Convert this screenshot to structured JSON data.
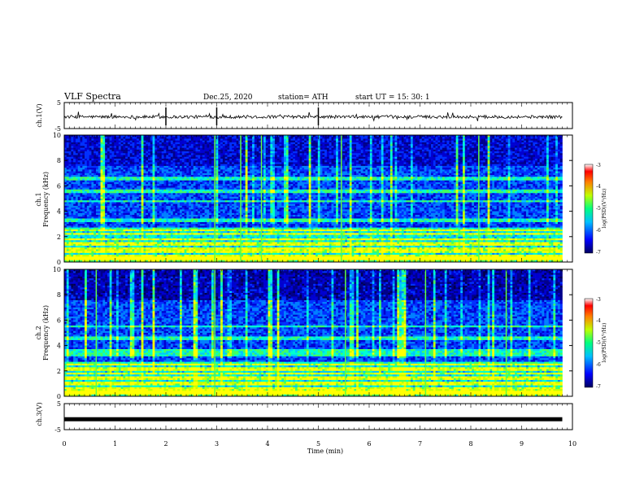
{
  "header": {
    "title": "VLF Spectra",
    "date": "Dec.25, 2020",
    "station": "station= ATH",
    "start": "start UT =   15: 30: 1"
  },
  "chart_data": [
    {
      "type": "line",
      "title": "",
      "ylabel": "ch.1(V)",
      "ylim": [
        -5,
        5
      ],
      "yticks": [
        "5",
        "-5"
      ],
      "description_values": {
        "mean_level": -0.5,
        "noise_amplitude": 0.6
      }
    },
    {
      "type": "heatmap",
      "ylabel_top": "ch.1",
      "ylabel": "Frequency (kHz)",
      "ylim": [
        0,
        10
      ],
      "yticks": [
        "0",
        "2",
        "4",
        "6",
        "8",
        "10"
      ],
      "colorbar": {
        "label": "log(PSD)(V²/Hz)",
        "ticks": [
          "-3",
          "-4",
          "-5",
          "-6",
          "-7"
        ],
        "range": [
          -7,
          -3
        ]
      },
      "bands_khz": [
        0.3,
        0.5,
        0.8,
        1.0,
        1.4,
        1.8,
        2.2,
        2.6,
        3.3,
        4.8,
        5.6,
        6.6
      ]
    },
    {
      "type": "heatmap",
      "ylabel_top": "ch.2",
      "ylabel": "Frequency (kHz)",
      "ylim": [
        0,
        10
      ],
      "yticks": [
        "0",
        "2",
        "4",
        "6",
        "8",
        "10"
      ],
      "colorbar": {
        "label": "log(PSD)(V²/Hz)",
        "ticks": [
          "-3",
          "-4",
          "-5",
          "-6",
          "-7"
        ],
        "range": [
          -7,
          -3
        ]
      },
      "bands_khz": [
        0.3,
        0.6,
        1.0,
        1.4,
        1.8,
        2.1,
        2.6,
        3.3,
        3.6,
        4.6,
        5.5
      ]
    },
    {
      "type": "line",
      "ylabel": "ch.3(V)",
      "ylim": [
        -5,
        5
      ],
      "yticks": [
        "5",
        "-5"
      ],
      "description_values": {
        "mean_level": -1.0
      }
    }
  ],
  "xaxis": {
    "label": "Time (min)",
    "ticks": [
      "0",
      "1",
      "2",
      "3",
      "4",
      "5",
      "6",
      "7",
      "8",
      "9",
      "10"
    ],
    "xlim": [
      0,
      10
    ],
    "data_end": 9.8
  },
  "colors": {
    "ink": "#000000",
    "background": "#ffffff"
  }
}
